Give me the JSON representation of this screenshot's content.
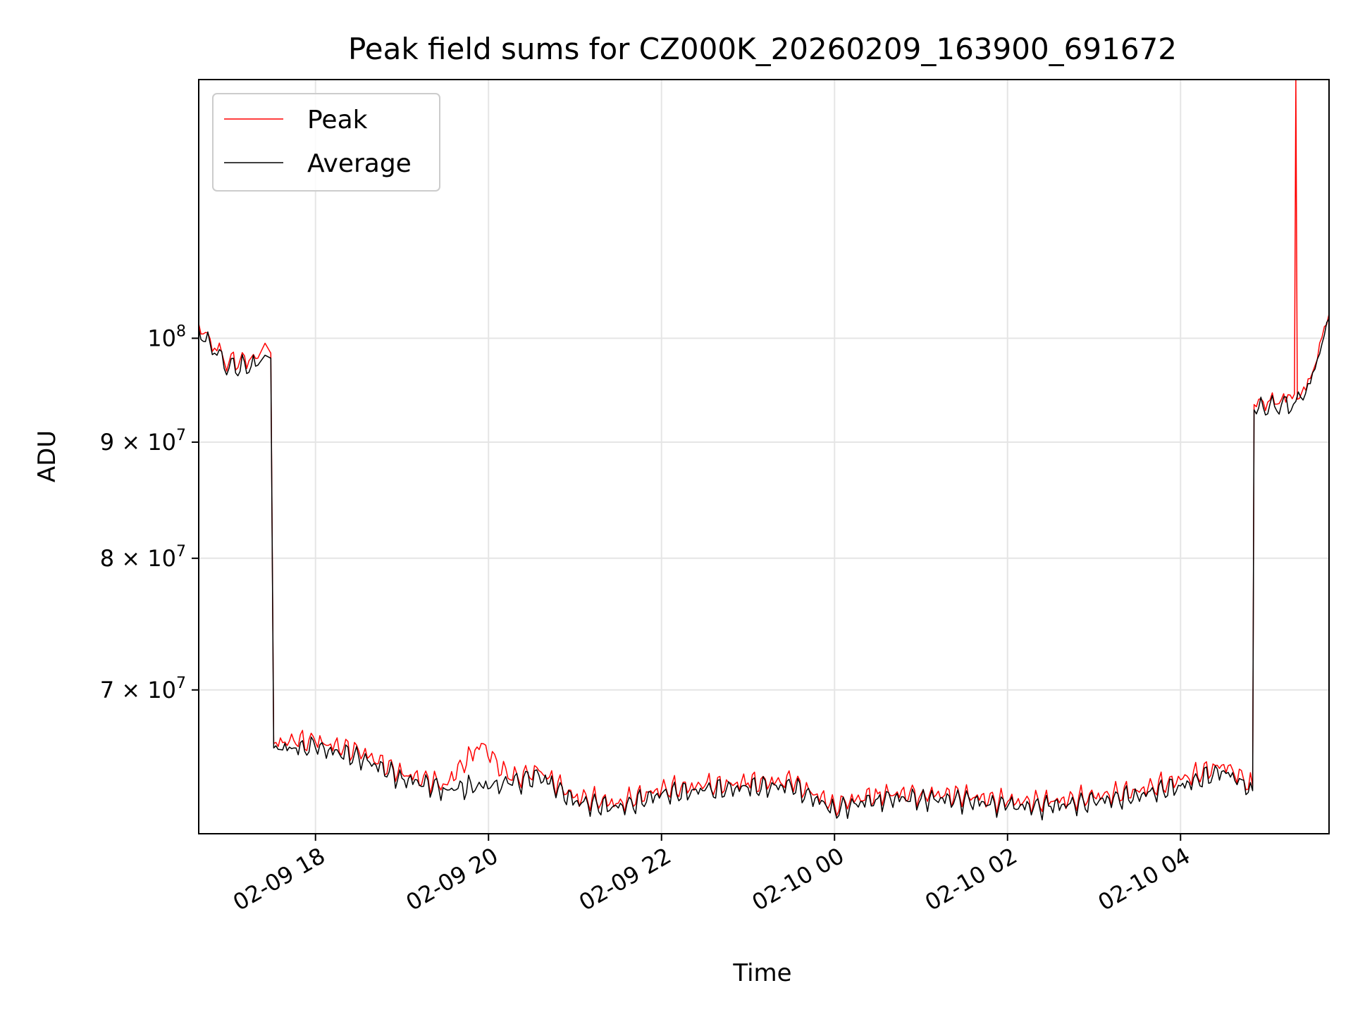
{
  "chart_data": {
    "type": "line",
    "title": "Peak field sums for CZ000K_20260209_163900_691672",
    "xlabel": "Time",
    "ylabel": "ADU",
    "x_range": [
      "2026-02-09 16:39",
      "2026-02-10 05:43"
    ],
    "x_ticks": [
      "2026-02-09 18:00",
      "2026-02-09 20:00",
      "2026-02-09 22:00",
      "2026-02-10 00:00",
      "2026-02-10 02:00",
      "2026-02-10 04:00"
    ],
    "x_tick_labels": [
      "02-09 18",
      "02-09 20",
      "02-09 22",
      "02-10 00",
      "02-10 02",
      "02-10 04"
    ],
    "y_scale": "log",
    "ylim": [
      60500000,
      130000000
    ],
    "y_ticks": [
      {
        "value": 100000000,
        "label": "10",
        "exp": "8",
        "mantissa": ""
      },
      {
        "value": 90000000,
        "label": "10",
        "exp": "7",
        "mantissa": "9 × "
      },
      {
        "value": 80000000,
        "label": "10",
        "exp": "7",
        "mantissa": "8 × "
      },
      {
        "value": 70000000,
        "label": "10",
        "exp": "7",
        "mantissa": "7 × "
      }
    ],
    "grid": true,
    "legend_position": "top-left",
    "series": [
      {
        "name": "Peak",
        "color": "#ff0000",
        "points": [
          [
            "2026-02-09 16:39",
            101500000
          ],
          [
            "2026-02-09 16:50",
            99000000
          ],
          [
            "2026-02-09 17:00",
            97600000
          ],
          [
            "2026-02-09 17:20",
            98000000
          ],
          [
            "2026-02-09 17:25",
            99500000
          ],
          [
            "2026-02-09 17:29",
            98500000
          ],
          [
            "2026-02-09 17:31",
            66300000
          ],
          [
            "2026-02-09 17:45",
            66500000
          ],
          [
            "2026-02-09 18:00",
            66400000
          ],
          [
            "2026-02-09 18:30",
            65800000
          ],
          [
            "2026-02-09 19:00",
            64300000
          ],
          [
            "2026-02-09 19:30",
            63600000
          ],
          [
            "2026-02-09 19:55",
            66300000
          ],
          [
            "2026-02-09 20:15",
            63900000
          ],
          [
            "2026-02-09 20:35",
            64500000
          ],
          [
            "2026-02-09 21:00",
            62800000
          ],
          [
            "2026-02-09 21:30",
            62400000
          ],
          [
            "2026-02-09 22:00",
            63300000
          ],
          [
            "2026-02-09 22:30",
            63500000
          ],
          [
            "2026-02-09 23:00",
            63700000
          ],
          [
            "2026-02-09 23:30",
            63800000
          ],
          [
            "2026-02-10 00:00",
            62300000
          ],
          [
            "2026-02-10 00:30",
            63000000
          ],
          [
            "2026-02-10 01:00",
            63000000
          ],
          [
            "2026-02-10 01:30",
            62900000
          ],
          [
            "2026-02-10 02:00",
            62500000
          ],
          [
            "2026-02-10 02:30",
            62500000
          ],
          [
            "2026-02-10 03:00",
            62800000
          ],
          [
            "2026-02-10 03:30",
            63200000
          ],
          [
            "2026-02-10 04:00",
            63900000
          ],
          [
            "2026-02-10 04:30",
            64900000
          ],
          [
            "2026-02-10 04:50",
            63500000
          ],
          [
            "2026-02-10 04:51",
            93500000
          ],
          [
            "2026-02-10 05:10",
            94000000
          ],
          [
            "2026-02-10 05:19",
            94500000
          ],
          [
            "2026-02-10 05:20",
            130000000
          ],
          [
            "2026-02-10 05:21",
            94000000
          ],
          [
            "2026-02-10 05:30",
            96000000
          ],
          [
            "2026-02-10 05:43",
            102500000
          ]
        ]
      },
      {
        "name": "Average",
        "color": "#000000",
        "points": [
          [
            "2026-02-09 16:39",
            101000000
          ],
          [
            "2026-02-09 16:50",
            98500000
          ],
          [
            "2026-02-09 17:00",
            97000000
          ],
          [
            "2026-02-09 17:20",
            97300000
          ],
          [
            "2026-02-09 17:25",
            98300000
          ],
          [
            "2026-02-09 17:29",
            98000000
          ],
          [
            "2026-02-09 17:31",
            66000000
          ],
          [
            "2026-02-09 17:45",
            66000000
          ],
          [
            "2026-02-09 18:00",
            66000000
          ],
          [
            "2026-02-09 18:30",
            65400000
          ],
          [
            "2026-02-09 19:00",
            64000000
          ],
          [
            "2026-02-09 19:30",
            63300000
          ],
          [
            "2026-02-09 19:55",
            63500000
          ],
          [
            "2026-02-09 20:15",
            63600000
          ],
          [
            "2026-02-09 20:35",
            64200000
          ],
          [
            "2026-02-09 21:00",
            62500000
          ],
          [
            "2026-02-09 21:30",
            62100000
          ],
          [
            "2026-02-09 22:00",
            63000000
          ],
          [
            "2026-02-09 22:30",
            63200000
          ],
          [
            "2026-02-09 23:00",
            63400000
          ],
          [
            "2026-02-09 23:30",
            63500000
          ],
          [
            "2026-02-10 00:00",
            62000000
          ],
          [
            "2026-02-10 00:30",
            62700000
          ],
          [
            "2026-02-10 01:00",
            62700000
          ],
          [
            "2026-02-10 01:30",
            62600000
          ],
          [
            "2026-02-10 02:00",
            62200000
          ],
          [
            "2026-02-10 02:30",
            62200000
          ],
          [
            "2026-02-10 03:00",
            62500000
          ],
          [
            "2026-02-10 03:30",
            62900000
          ],
          [
            "2026-02-10 04:00",
            63500000
          ],
          [
            "2026-02-10 04:30",
            64500000
          ],
          [
            "2026-02-10 04:50",
            63200000
          ],
          [
            "2026-02-10 04:51",
            93000000
          ],
          [
            "2026-02-10 05:10",
            93500000
          ],
          [
            "2026-02-10 05:20",
            93800000
          ],
          [
            "2026-02-10 05:30",
            95500000
          ],
          [
            "2026-02-10 05:43",
            102000000
          ]
        ]
      }
    ]
  }
}
